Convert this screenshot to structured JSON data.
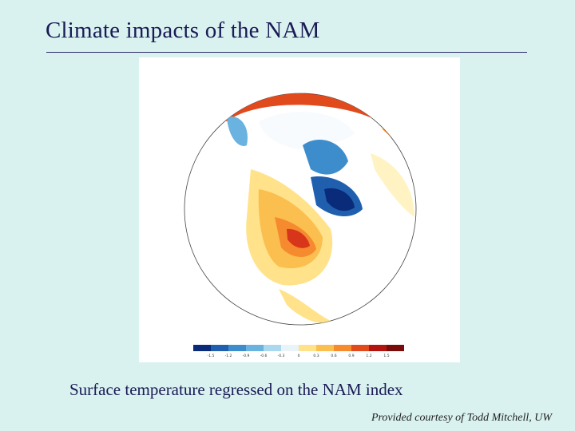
{
  "slide": {
    "title": "Climate impacts of the NAM",
    "caption": "Surface temperature regressed on the NAM index",
    "credit": "Provided courtesy of Todd Mitchell, UW"
  },
  "map": {
    "projection": "polar stereographic (North Pole)",
    "region": "Northern Hemisphere – North America / Arctic",
    "colorbar": {
      "labels": [
        "-1.5",
        "-1.2",
        "-0.9",
        "-0.6",
        "-0.3",
        "0",
        "0.3",
        "0.6",
        "0.9",
        "1.2",
        "1.5"
      ],
      "colors": [
        "#0a2a7a",
        "#1f5fae",
        "#3d8ccc",
        "#6ab2e0",
        "#a9d8ef",
        "#e8f4fa",
        "#ffe28a",
        "#fbbf4f",
        "#f58a2e",
        "#e04a1c",
        "#b4140f",
        "#7a0b0b"
      ]
    }
  }
}
